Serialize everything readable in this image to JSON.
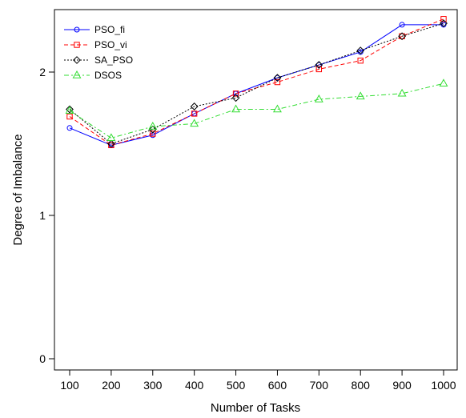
{
  "chart_data": {
    "type": "line",
    "xlabel": "Number of Tasks",
    "ylabel": "Degree of Imbalance",
    "x": [
      100,
      200,
      300,
      400,
      500,
      600,
      700,
      800,
      900,
      1000
    ],
    "xlim": [
      100,
      1000
    ],
    "ylim": [
      0,
      2.4
    ],
    "yticks": [
      0,
      1,
      2
    ],
    "grid": false,
    "legend_position": "top-left",
    "series": [
      {
        "name": "PSO_fi",
        "color": "#0000ff",
        "dash": "solid",
        "marker": "circle",
        "values": [
          1.61,
          1.49,
          1.56,
          1.71,
          1.85,
          1.96,
          2.05,
          2.14,
          2.33,
          2.33
        ]
      },
      {
        "name": "PSO_vi",
        "color": "#ff0000",
        "dash": "dashed",
        "marker": "square",
        "values": [
          1.69,
          1.49,
          1.57,
          1.71,
          1.85,
          1.93,
          2.02,
          2.08,
          2.25,
          2.37
        ]
      },
      {
        "name": "SA_PSO",
        "color": "#000000",
        "dash": "dotted",
        "marker": "diamond",
        "values": [
          1.74,
          1.5,
          1.6,
          1.76,
          1.82,
          1.96,
          2.05,
          2.15,
          2.25,
          2.34
        ]
      },
      {
        "name": "DSOS",
        "color": "#33dd33",
        "dash": "dashdot",
        "marker": "triangle",
        "values": [
          1.73,
          1.54,
          1.62,
          1.64,
          1.74,
          1.74,
          1.81,
          1.83,
          1.85,
          1.92
        ]
      }
    ]
  }
}
